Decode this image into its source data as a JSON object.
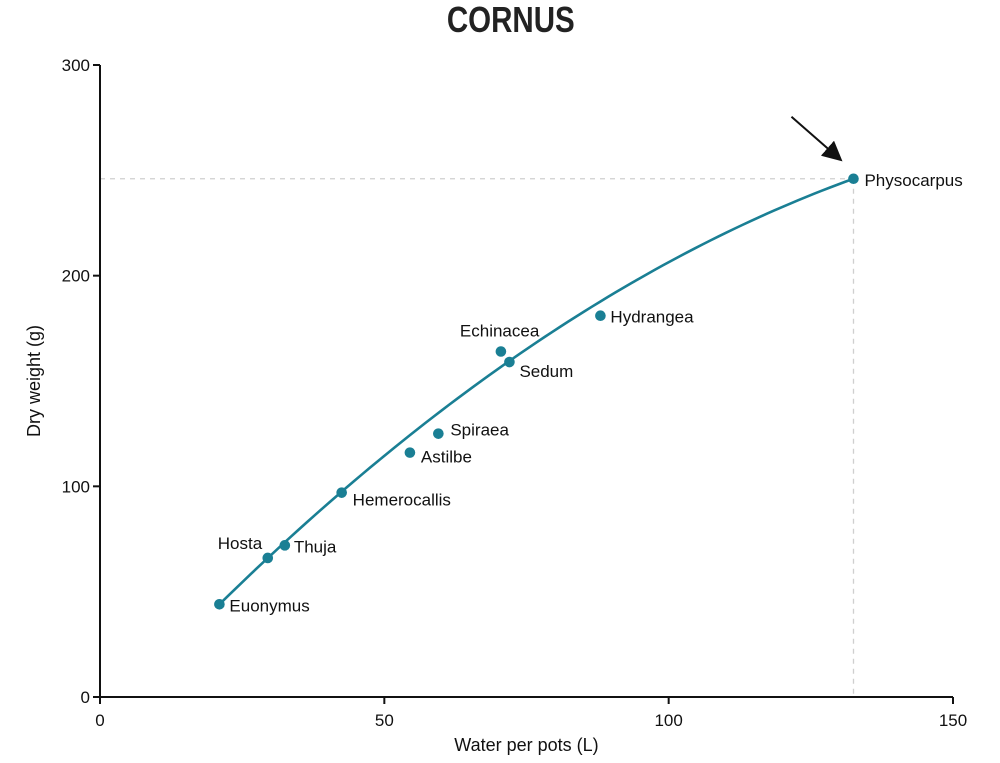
{
  "chart_data": {
    "type": "scatter",
    "title": "CORNUS",
    "xlabel": "Water per pots (L)",
    "ylabel": "Dry weight (g)",
    "xlim": [
      0,
      150
    ],
    "ylim": [
      0,
      300
    ],
    "xticks": [
      0,
      50,
      100,
      150
    ],
    "yticks": [
      0,
      100,
      200,
      300
    ],
    "grid": false,
    "colors": {
      "series": "#1a7f94",
      "reference": "#cfcfcf",
      "axis": "#111111"
    },
    "points": [
      {
        "name": "Euonymus",
        "x": 21,
        "y": 44
      },
      {
        "name": "Hosta",
        "x": 29.5,
        "y": 66
      },
      {
        "name": "Thuja",
        "x": 32.5,
        "y": 72
      },
      {
        "name": "Hemerocallis",
        "x": 42.5,
        "y": 97
      },
      {
        "name": "Astilbe",
        "x": 54.5,
        "y": 116
      },
      {
        "name": "Spiraea",
        "x": 59.5,
        "y": 125
      },
      {
        "name": "Echinacea",
        "x": 70.5,
        "y": 164
      },
      {
        "name": "Sedum",
        "x": 72,
        "y": 159
      },
      {
        "name": "Hydrangea",
        "x": 88,
        "y": 181
      },
      {
        "name": "Physocarpus",
        "x": 132.5,
        "y": 246
      }
    ],
    "fit_curve": {
      "type": "quadratic",
      "x_range": [
        21,
        132.5
      ],
      "y": [
        44,
        246
      ],
      "curvature": -0.0075
    },
    "highlight": {
      "name": "Physocarpus",
      "x": 132.5,
      "y": 246,
      "arrow": true,
      "reference_lines": true
    }
  }
}
